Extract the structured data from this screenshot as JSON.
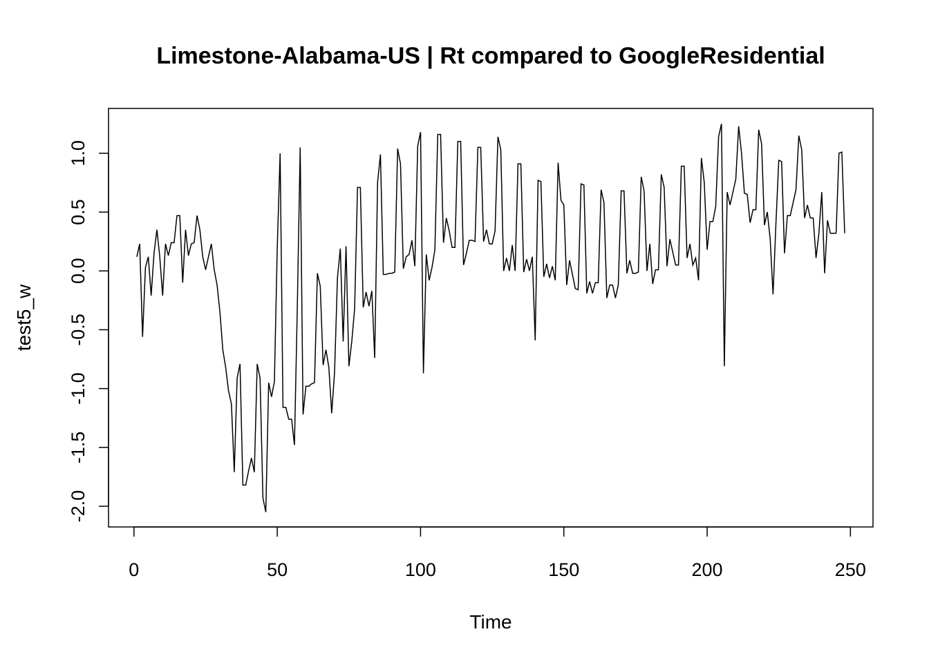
{
  "chart_data": {
    "type": "line",
    "title": "Limestone-Alabama-US | Rt compared to GoogleResidential",
    "xlabel": "Time",
    "ylabel": "test5_w",
    "color": "#000000",
    "x": [
      1,
      2,
      3,
      4,
      5,
      6,
      7,
      8,
      9,
      10,
      11,
      12,
      13,
      14,
      15,
      16,
      17,
      18,
      19,
      20,
      21,
      22,
      23,
      24,
      25,
      26,
      27,
      28,
      29,
      30,
      31,
      32,
      33,
      34,
      35,
      36,
      37,
      38,
      39,
      40,
      41,
      42,
      43,
      44,
      45,
      46,
      47,
      48,
      49,
      50,
      51,
      52,
      53,
      54,
      55,
      56,
      57,
      58,
      59,
      60,
      61,
      62,
      63,
      64,
      65,
      66,
      67,
      68,
      69,
      70,
      71,
      72,
      73,
      74,
      75,
      76,
      77,
      78,
      79,
      80,
      81,
      82,
      83,
      84,
      85,
      86,
      87,
      88,
      89,
      90,
      91,
      92,
      93,
      94,
      95,
      96,
      97,
      98,
      99,
      100,
      101,
      102,
      103,
      104,
      105,
      106,
      107,
      108,
      109,
      110,
      111,
      112,
      113,
      114,
      115,
      116,
      117,
      118,
      119,
      120,
      121,
      122,
      123,
      124,
      125,
      126,
      127,
      128,
      129,
      130,
      131,
      132,
      133,
      134,
      135,
      136,
      137,
      138,
      139,
      140,
      141,
      142,
      143,
      144,
      145,
      146,
      147,
      148,
      149,
      150,
      151,
      152,
      153,
      154,
      155,
      156,
      157,
      158,
      159,
      160,
      161,
      162,
      163,
      164,
      165,
      166,
      167,
      168,
      169,
      170,
      171,
      172,
      173,
      174,
      175,
      176,
      177,
      178,
      179,
      180,
      181,
      182,
      183,
      184,
      185,
      186,
      187,
      188,
      189,
      190,
      191,
      192,
      193,
      194,
      195,
      196,
      197,
      198,
      199,
      200,
      201,
      202,
      203,
      204,
      205,
      206,
      207,
      208,
      209,
      210,
      211,
      212,
      213,
      214,
      215,
      216,
      217,
      218,
      219,
      220,
      221,
      222,
      223,
      224,
      225,
      226,
      227,
      228,
      229,
      230,
      231,
      232,
      233,
      234,
      235,
      236,
      237,
      238,
      239,
      240,
      241,
      242,
      243,
      244,
      245,
      246,
      247,
      248
    ],
    "values": [
      0.12,
      0.23,
      -0.56,
      0.03,
      0.12,
      -0.21,
      0.15,
      0.35,
      0.12,
      -0.21,
      0.23,
      0.13,
      0.24,
      0.24,
      0.47,
      0.47,
      -0.1,
      0.35,
      0.13,
      0.23,
      0.24,
      0.47,
      0.35,
      0.12,
      0.01,
      0.12,
      0.23,
      0.01,
      -0.12,
      -0.35,
      -0.67,
      -0.82,
      -1.02,
      -1.13,
      -1.71,
      -0.91,
      -0.79,
      -1.82,
      -1.82,
      -1.7,
      -1.59,
      -1.71,
      -0.79,
      -0.91,
      -1.93,
      -2.05,
      -0.95,
      -1.07,
      -0.94,
      0.2,
      1.0,
      -1.16,
      -1.16,
      -1.26,
      -1.26,
      -1.48,
      -0.3,
      1.05,
      -1.22,
      -0.98,
      -0.98,
      -0.96,
      -0.95,
      -0.02,
      -0.13,
      -0.8,
      -0.67,
      -0.82,
      -1.21,
      -0.86,
      -0.06,
      0.19,
      -0.6,
      0.21,
      -0.81,
      -0.6,
      -0.32,
      0.71,
      0.71,
      -0.31,
      -0.18,
      -0.3,
      -0.17,
      -0.74,
      0.75,
      0.99,
      -0.03,
      -0.03,
      -0.02,
      -0.02,
      -0.01,
      1.04,
      0.91,
      0.02,
      0.12,
      0.14,
      0.26,
      0.04,
      1.06,
      1.18,
      -0.87,
      0.14,
      -0.08,
      0.03,
      0.18,
      1.16,
      1.16,
      0.24,
      0.45,
      0.34,
      0.2,
      0.2,
      1.1,
      1.1,
      0.05,
      0.15,
      0.26,
      0.26,
      0.25,
      1.05,
      1.05,
      0.25,
      0.35,
      0.23,
      0.23,
      0.34,
      1.14,
      1.03,
      0.0,
      0.11,
      0.0,
      0.22,
      0.0,
      0.91,
      0.91,
      -0.01,
      0.1,
      0.0,
      0.12,
      -0.59,
      0.77,
      0.76,
      -0.05,
      0.06,
      -0.06,
      0.04,
      -0.08,
      0.92,
      0.6,
      0.56,
      -0.12,
      0.09,
      -0.03,
      -0.15,
      -0.16,
      0.74,
      0.73,
      -0.19,
      -0.09,
      -0.19,
      -0.1,
      -0.1,
      0.69,
      0.58,
      -0.23,
      -0.12,
      -0.12,
      -0.23,
      -0.12,
      0.68,
      0.68,
      -0.02,
      0.09,
      -0.02,
      -0.02,
      -0.01,
      0.8,
      0.68,
      0.0,
      0.23,
      -0.11,
      0.01,
      0.01,
      0.82,
      0.71,
      0.04,
      0.27,
      0.16,
      0.05,
      0.05,
      0.89,
      0.89,
      0.11,
      0.23,
      0.05,
      0.11,
      -0.08,
      0.96,
      0.75,
      0.18,
      0.42,
      0.42,
      0.55,
      1.14,
      1.25,
      -0.81,
      0.67,
      0.56,
      0.67,
      0.78,
      1.23,
      1.0,
      0.66,
      0.65,
      0.41,
      0.52,
      0.52,
      1.2,
      1.08,
      0.39,
      0.5,
      0.27,
      -0.2,
      0.4,
      0.94,
      0.93,
      0.15,
      0.47,
      0.47,
      0.58,
      0.69,
      1.15,
      1.03,
      0.45,
      0.56,
      0.45,
      0.45,
      0.11,
      0.32,
      0.67,
      -0.02,
      0.43,
      0.32,
      0.32,
      0.32,
      1.0,
      1.01,
      0.32
    ],
    "xlim": [
      -8.88,
      257.88
    ],
    "xticks": [
      0,
      50,
      100,
      150,
      200,
      250
    ],
    "ylim": [
      -2.176,
      1.381
    ],
    "yticks": [
      {
        "value": -2,
        "label": "-2.0"
      },
      {
        "value": -1.5,
        "label": "-1.5"
      },
      {
        "value": -1,
        "label": "-1.0"
      },
      {
        "value": -0.5,
        "label": "-0.5"
      },
      {
        "value": 0,
        "label": "0.0"
      },
      {
        "value": 0.5,
        "label": "0.5"
      },
      {
        "value": 1,
        "label": "1.0"
      }
    ]
  }
}
